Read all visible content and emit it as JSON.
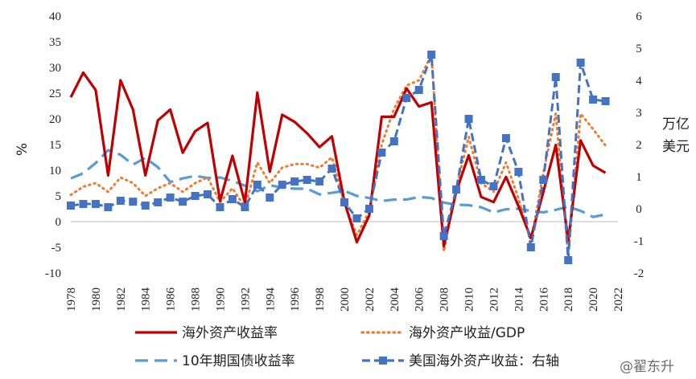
{
  "chart_data": {
    "type": "line",
    "title": "",
    "x": [
      1978,
      1979,
      1980,
      1981,
      1982,
      1983,
      1984,
      1985,
      1986,
      1987,
      1988,
      1989,
      1990,
      1991,
      1992,
      1993,
      1994,
      1995,
      1996,
      1997,
      1998,
      1999,
      2000,
      2001,
      2002,
      2003,
      2004,
      2005,
      2006,
      2007,
      2008,
      2009,
      2010,
      2011,
      2012,
      2013,
      2014,
      2015,
      2016,
      2017,
      2018,
      2019,
      2020,
      2021
    ],
    "x_ticks": [
      "1978",
      "1980",
      "1982",
      "1984",
      "1986",
      "1988",
      "1990",
      "1992",
      "1994",
      "1996",
      "1998",
      "2000",
      "2002",
      "2004",
      "2006",
      "2008",
      "2010",
      "2012",
      "2014",
      "2016",
      "2018",
      "2020",
      "2022"
    ],
    "xlim": [
      1978,
      2022
    ],
    "ylim_left": [
      -10,
      40
    ],
    "ylim_right": [
      -2,
      6
    ],
    "yticks_left": [
      "-10",
      "-5",
      "0",
      "5",
      "10",
      "15",
      "20",
      "25",
      "30",
      "35",
      "40"
    ],
    "yticks_right": [
      "-2",
      "-1",
      "0",
      "1",
      "2",
      "3",
      "4",
      "5",
      "6"
    ],
    "ylabel_left": "%",
    "ylabel_right": [
      "万亿",
      "美元"
    ],
    "series": [
      {
        "name": "海外资产收益率",
        "axis": "left",
        "color": "#c00000",
        "style": "solid",
        "values": [
          24.2,
          29.0,
          25.6,
          9.0,
          27.5,
          21.8,
          9.0,
          19.7,
          21.8,
          13.4,
          17.6,
          19.2,
          4.0,
          12.8,
          3.7,
          25.1,
          9.7,
          20.8,
          19.4,
          17.2,
          14.5,
          16.6,
          3.9,
          -4.0,
          1.2,
          20.4,
          20.4,
          25.9,
          22.4,
          23.2,
          -4.8,
          5.9,
          12.9,
          4.8,
          3.8,
          8.7,
          3.0,
          -3.2,
          5.8,
          14.9,
          -3.7,
          15.8,
          10.9,
          9.5
        ]
      },
      {
        "name": "海外资产收益/GDP",
        "axis": "left",
        "color": "#ed7d31",
        "style": "dotted",
        "values": [
          5.2,
          6.8,
          7.5,
          5.8,
          8.6,
          7.5,
          5.0,
          6.5,
          7.5,
          5.8,
          7.5,
          8.6,
          3.8,
          6.5,
          2.8,
          11.5,
          7.5,
          10.5,
          11.2,
          11.2,
          10.5,
          12.5,
          3.5,
          -2.6,
          2.0,
          15.0,
          22.0,
          26.5,
          27.5,
          32.5,
          -5.8,
          6.5,
          16.5,
          7.5,
          5.8,
          11.5,
          4.5,
          -4.0,
          9.5,
          21.0,
          -6.5,
          21.0,
          18.0,
          14.8
        ]
      },
      {
        "name": "10年期国债收益率",
        "axis": "left",
        "color": "#5b9bd5",
        "style": "dashed",
        "values": [
          8.4,
          9.4,
          11.4,
          13.9,
          13.0,
          11.1,
          12.4,
          10.6,
          7.7,
          8.4,
          8.9,
          8.5,
          8.6,
          7.9,
          7.0,
          5.9,
          7.1,
          6.6,
          6.4,
          6.4,
          5.3,
          5.6,
          6.0,
          5.0,
          4.6,
          4.0,
          4.3,
          4.3,
          4.8,
          4.6,
          3.7,
          3.3,
          3.2,
          2.8,
          1.8,
          2.4,
          2.5,
          2.1,
          1.8,
          2.3,
          2.9,
          2.1,
          0.9,
          1.4
        ]
      },
      {
        "name": "美国海外资产收益：右轴",
        "axis": "right",
        "color": "#4472c4",
        "style": "dash-marker",
        "values": [
          0.1,
          0.15,
          0.15,
          0.05,
          0.25,
          0.22,
          0.1,
          0.2,
          0.35,
          0.22,
          0.4,
          0.45,
          0.05,
          0.3,
          0.05,
          0.75,
          0.35,
          0.75,
          0.85,
          0.9,
          0.85,
          1.25,
          0.2,
          -0.3,
          0.0,
          1.75,
          2.1,
          3.45,
          3.7,
          4.8,
          -0.85,
          0.6,
          2.8,
          0.9,
          0.7,
          2.2,
          1.15,
          -1.2,
          0.9,
          4.1,
          -1.6,
          4.55,
          3.4,
          3.35
        ]
      }
    ]
  },
  "watermark": "@翟东升"
}
